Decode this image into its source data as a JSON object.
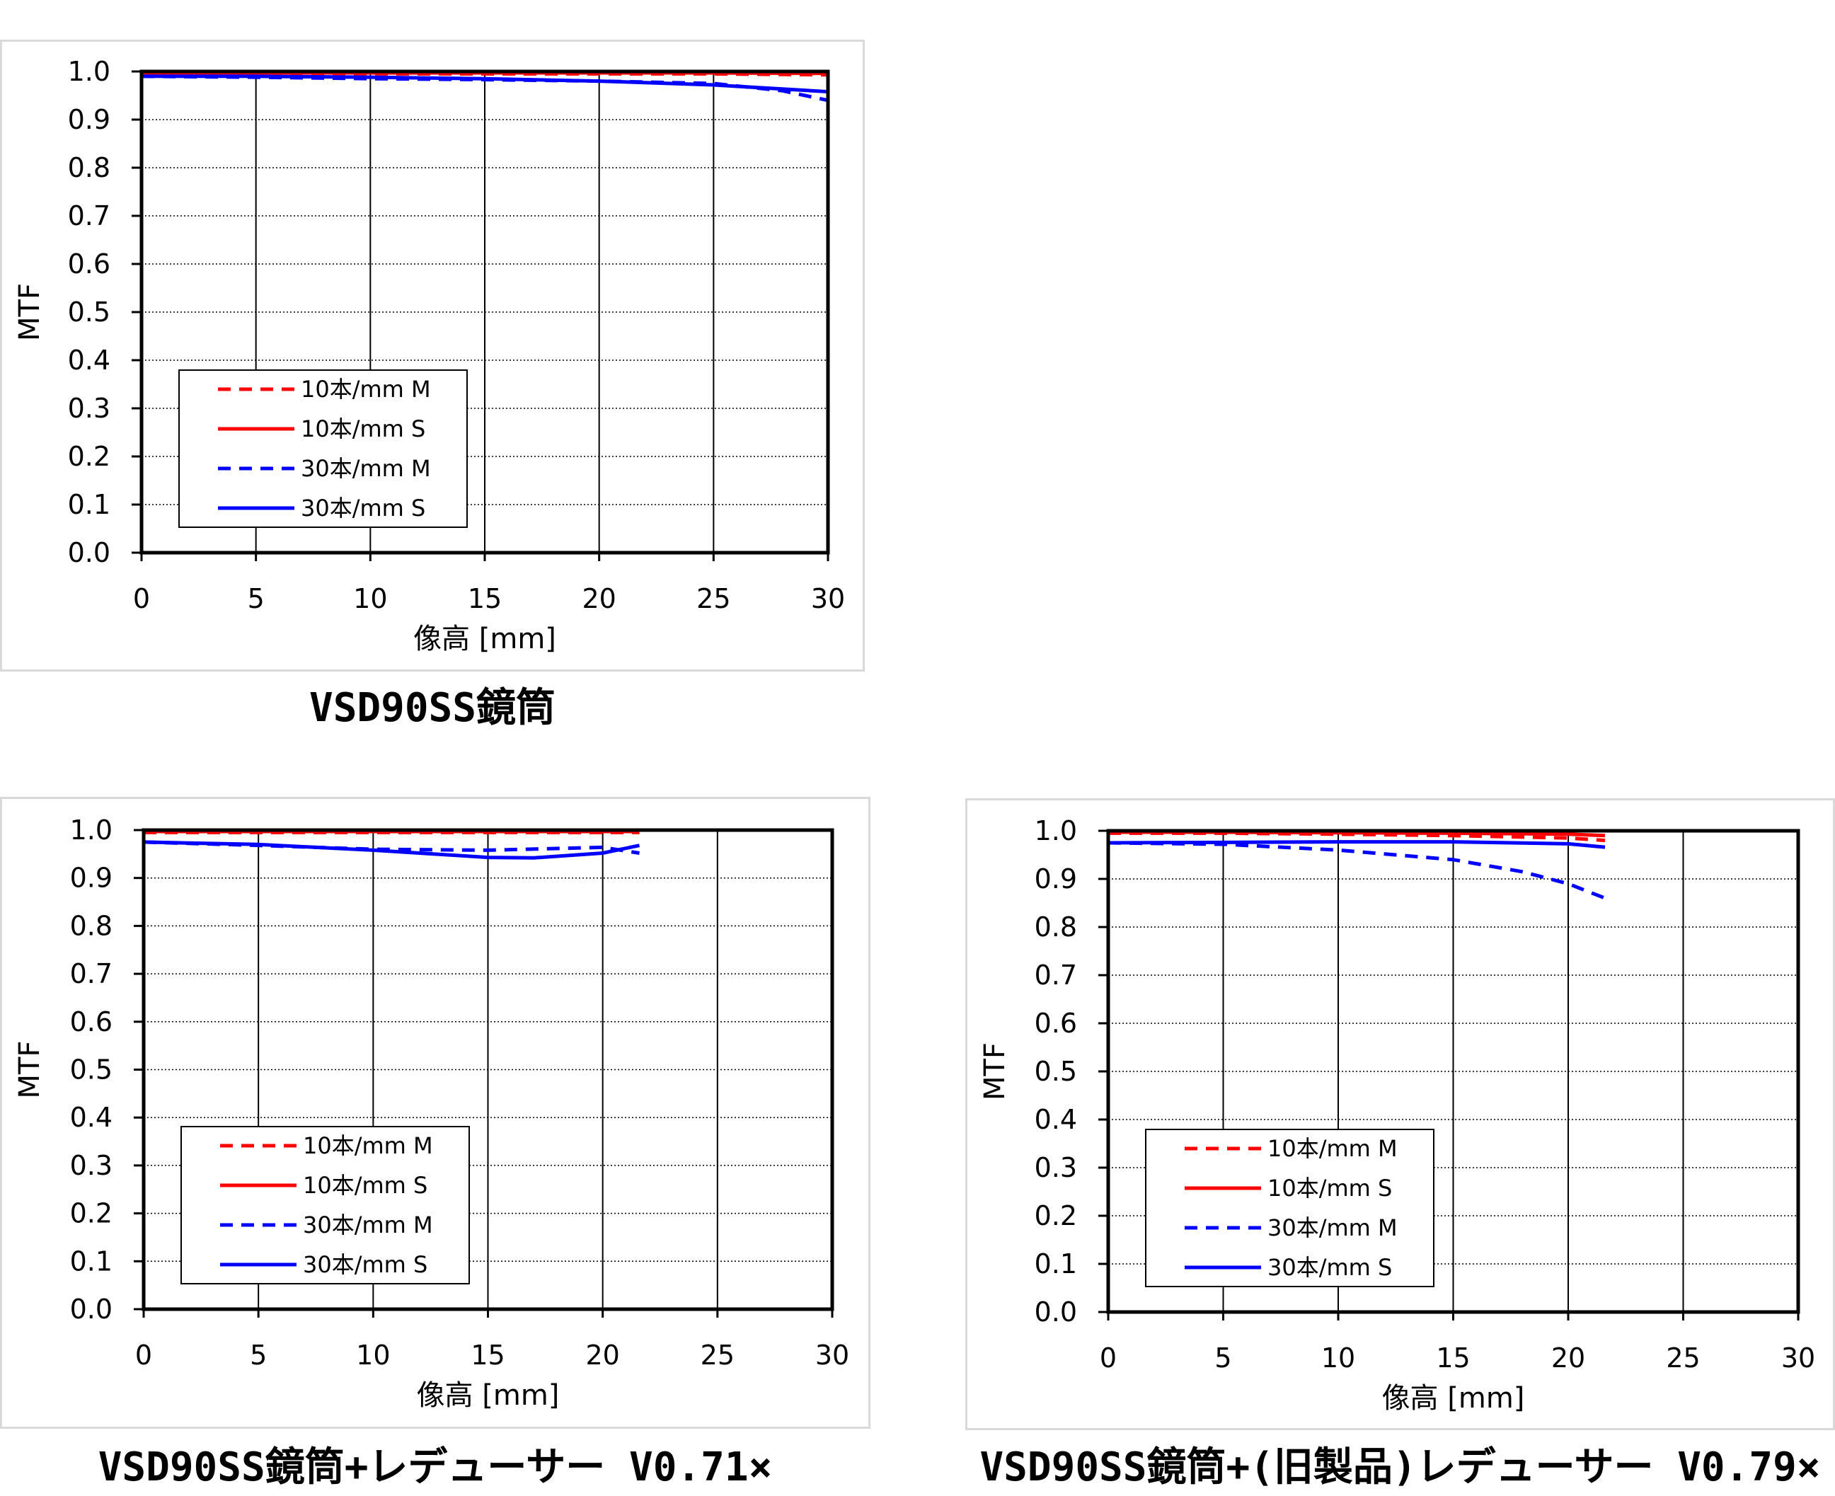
{
  "legend_labels": [
    "10本/mm M",
    "10本/mm S",
    "30本/mm M",
    "30本/mm S"
  ],
  "colors": {
    "red": "#ff0000",
    "blue": "#0000ff",
    "grid": "#000000",
    "frame": "#d9d9d9"
  },
  "chart_data": [
    {
      "type": "line",
      "title": "VSD90SS鏡筒",
      "xlabel": "像高 [mm]",
      "ylabel": "MTF",
      "xlim": [
        0,
        30
      ],
      "ylim": [
        0,
        1.0
      ],
      "xticks": [
        "0",
        "5",
        "10",
        "15",
        "20",
        "25",
        "30"
      ],
      "yticks": [
        "0.0",
        "0.1",
        "0.2",
        "0.3",
        "0.4",
        "0.5",
        "0.6",
        "0.7",
        "0.8",
        "0.9",
        "1.0"
      ],
      "legend_position": "lower-left",
      "series": [
        {
          "name": "10本/mm M",
          "color": "#ff0000",
          "dash": true,
          "x": [
            0,
            5,
            10,
            15,
            20,
            25,
            30
          ],
          "y": [
            0.995,
            0.995,
            0.995,
            0.995,
            0.995,
            0.995,
            0.993
          ]
        },
        {
          "name": "10本/mm S",
          "color": "#ff0000",
          "dash": false,
          "x": [
            0,
            5,
            10,
            15,
            20,
            25,
            30
          ],
          "y": [
            0.997,
            0.997,
            0.997,
            0.997,
            0.997,
            0.997,
            0.996
          ]
        },
        {
          "name": "30本/mm M",
          "color": "#0000ff",
          "dash": true,
          "x": [
            0,
            5,
            10,
            15,
            20,
            25,
            28,
            30
          ],
          "y": [
            0.99,
            0.988,
            0.985,
            0.983,
            0.98,
            0.975,
            0.96,
            0.94
          ]
        },
        {
          "name": "30本/mm S",
          "color": "#0000ff",
          "dash": false,
          "x": [
            0,
            5,
            10,
            15,
            20,
            25,
            30
          ],
          "y": [
            0.99,
            0.99,
            0.988,
            0.985,
            0.98,
            0.972,
            0.958
          ]
        }
      ]
    },
    {
      "type": "line",
      "title": "VSD90SS鏡筒+レデューサー V0.71×",
      "xlabel": "像高 [mm]",
      "ylabel": "MTF",
      "xlim": [
        0,
        30
      ],
      "ylim": [
        0,
        1.0
      ],
      "xticks": [
        "0",
        "5",
        "10",
        "15",
        "20",
        "25",
        "30"
      ],
      "yticks": [
        "0.0",
        "0.1",
        "0.2",
        "0.3",
        "0.4",
        "0.5",
        "0.6",
        "0.7",
        "0.8",
        "0.9",
        "1.0"
      ],
      "legend_position": "lower-left",
      "series": [
        {
          "name": "10本/mm M",
          "color": "#ff0000",
          "dash": true,
          "x": [
            0,
            5,
            10,
            15,
            20,
            21.6
          ],
          "y": [
            0.995,
            0.995,
            0.995,
            0.995,
            0.995,
            0.995
          ]
        },
        {
          "name": "10本/mm S",
          "color": "#ff0000",
          "dash": false,
          "x": [
            0,
            5,
            10,
            15,
            20,
            21.6
          ],
          "y": [
            0.997,
            0.997,
            0.997,
            0.997,
            0.997,
            0.997
          ]
        },
        {
          "name": "30本/mm M",
          "color": "#0000ff",
          "dash": true,
          "x": [
            0,
            5,
            10,
            15,
            20,
            21.6
          ],
          "y": [
            0.975,
            0.968,
            0.96,
            0.958,
            0.964,
            0.952
          ]
        },
        {
          "name": "30本/mm S",
          "color": "#0000ff",
          "dash": false,
          "x": [
            0,
            5,
            10,
            15,
            17,
            20,
            21.6
          ],
          "y": [
            0.975,
            0.97,
            0.958,
            0.943,
            0.942,
            0.952,
            0.968
          ]
        }
      ]
    },
    {
      "type": "line",
      "title": "VSD90SS鏡筒+(旧製品)レデューサー V0.79×",
      "xlabel": "像高 [mm]",
      "ylabel": "MTF",
      "xlim": [
        0,
        30
      ],
      "ylim": [
        0,
        1.0
      ],
      "xticks": [
        "0",
        "5",
        "10",
        "15",
        "20",
        "25",
        "30"
      ],
      "yticks": [
        "0.0",
        "0.1",
        "0.2",
        "0.3",
        "0.4",
        "0.5",
        "0.6",
        "0.7",
        "0.8",
        "0.9",
        "1.0"
      ],
      "legend_position": "lower-left",
      "series": [
        {
          "name": "10本/mm M",
          "color": "#ff0000",
          "dash": true,
          "x": [
            0,
            5,
            10,
            15,
            20,
            21.6
          ],
          "y": [
            0.995,
            0.995,
            0.993,
            0.99,
            0.985,
            0.98
          ]
        },
        {
          "name": "10本/mm S",
          "color": "#ff0000",
          "dash": false,
          "x": [
            0,
            5,
            10,
            15,
            20,
            21.6
          ],
          "y": [
            0.997,
            0.997,
            0.996,
            0.995,
            0.993,
            0.99
          ]
        },
        {
          "name": "30本/mm M",
          "color": "#0000ff",
          "dash": true,
          "x": [
            0,
            5,
            10,
            15,
            18,
            20,
            21.6
          ],
          "y": [
            0.975,
            0.972,
            0.96,
            0.94,
            0.915,
            0.89,
            0.86
          ]
        },
        {
          "name": "30本/mm S",
          "color": "#0000ff",
          "dash": false,
          "x": [
            0,
            5,
            10,
            15,
            20,
            21.6
          ],
          "y": [
            0.975,
            0.976,
            0.977,
            0.977,
            0.973,
            0.966
          ]
        }
      ]
    }
  ]
}
